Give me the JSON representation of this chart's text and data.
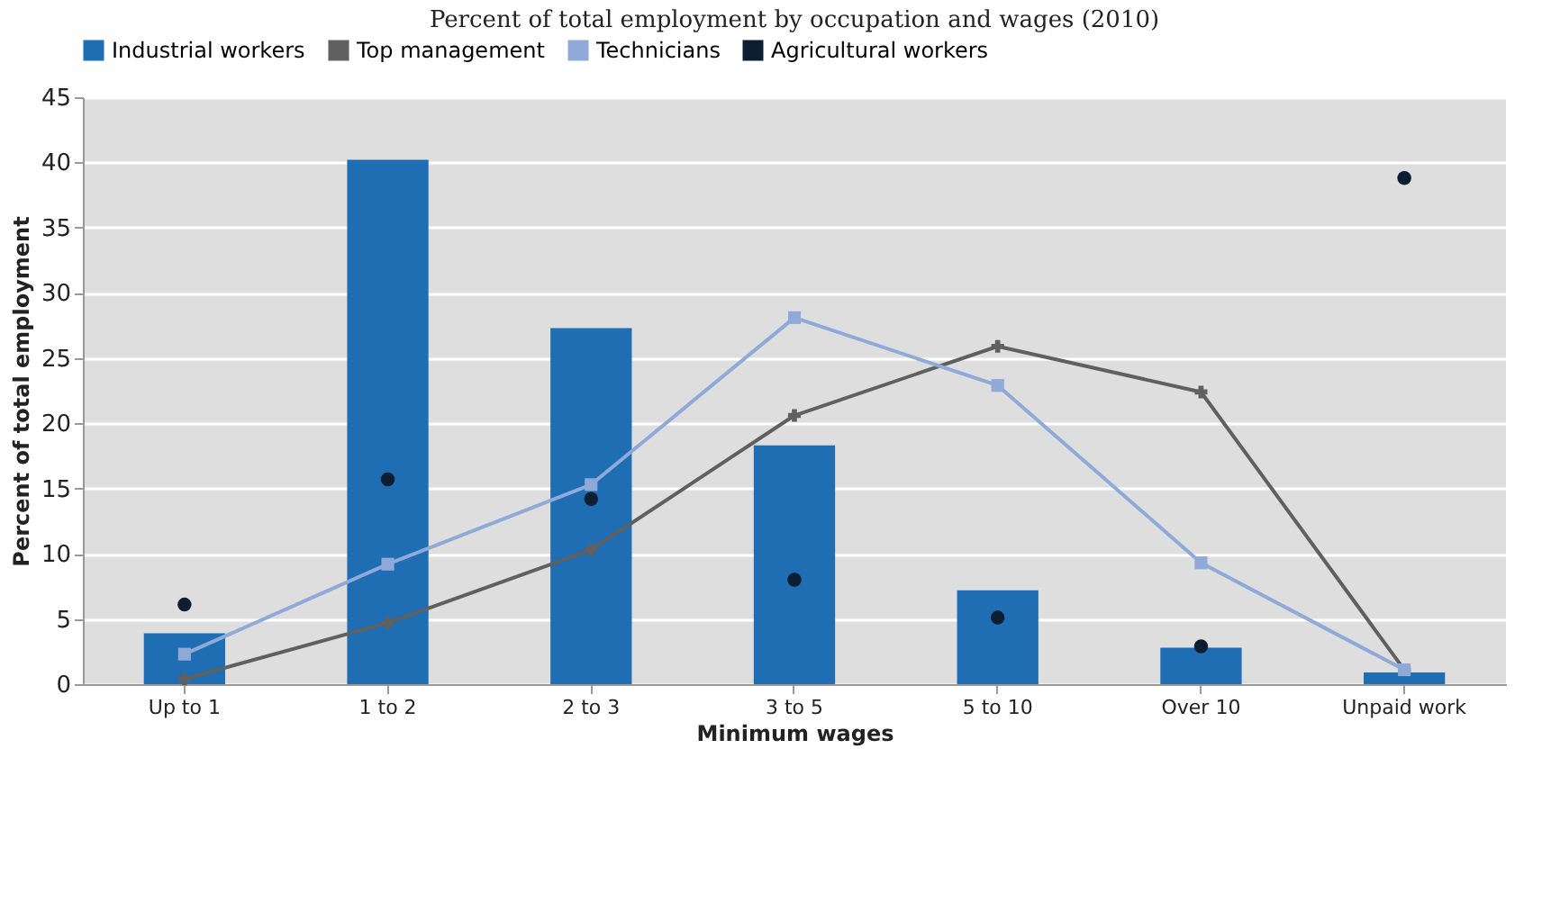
{
  "chart_data": {
    "type": "bar",
    "title": "Percent of total employment by occupation and wages (2010)",
    "xlabel": "Minimum wages",
    "ylabel": "Percent of total employment",
    "categories": [
      "Up to 1",
      "1 to 2",
      "2 to 3",
      "3 to 5",
      "5 to 10",
      "Over 10",
      "Unpaid work"
    ],
    "series": [
      {
        "name": "Industrial workers",
        "color": "#1f6db3",
        "values": [
          3.9,
          40.2,
          27.3,
          18.3,
          7.2,
          2.8,
          0.9
        ]
      },
      {
        "name": "Top management",
        "type": "line",
        "color": "#606060",
        "marker": "cross",
        "values": [
          0.4,
          4.7,
          10.3,
          20.6,
          25.9,
          22.4,
          1.1
        ]
      },
      {
        "name": "Technicians",
        "type": "line",
        "color": "#8fa9d8",
        "marker": "square",
        "values": [
          2.3,
          9.2,
          15.3,
          28.1,
          22.9,
          9.3,
          1.1
        ]
      },
      {
        "name": "Agricultural workers",
        "type": "scatter",
        "color": "#0d1e33",
        "marker": "circle",
        "values": [
          6.1,
          15.7,
          14.2,
          8.0,
          5.1,
          2.9,
          38.8
        ]
      }
    ],
    "ylim": [
      0,
      45
    ],
    "yticks": [
      0,
      5,
      10,
      15,
      20,
      25,
      30,
      35,
      40,
      45
    ],
    "grid": "y",
    "legend": "top"
  }
}
